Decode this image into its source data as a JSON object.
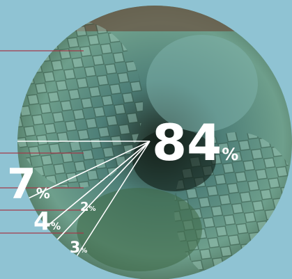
{
  "chart_data": {
    "type": "pie",
    "values": [
      84,
      7,
      4,
      2,
      3
    ],
    "unit": "%",
    "line_color": "#ffffff",
    "label_color": "#ffffff"
  }
}
